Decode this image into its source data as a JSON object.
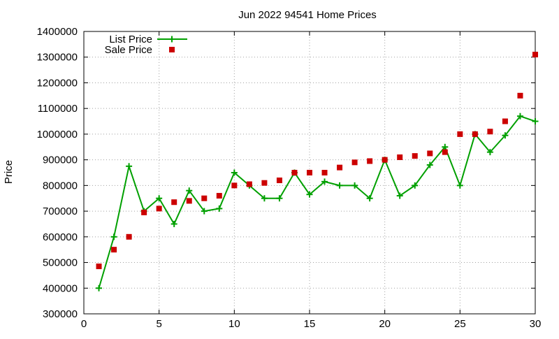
{
  "chart_data": {
    "type": "line",
    "title": "Jun 2022 94541 Home Prices",
    "xlabel": "",
    "ylabel": "Price",
    "xlim": [
      0,
      30
    ],
    "ylim": [
      300000,
      1400000
    ],
    "xticks": [
      0,
      5,
      10,
      15,
      20,
      25,
      30
    ],
    "yticks": [
      300000,
      400000,
      500000,
      600000,
      700000,
      800000,
      900000,
      1000000,
      1100000,
      1200000,
      1300000,
      1400000
    ],
    "grid": true,
    "legend_position": "top-left",
    "series": [
      {
        "name": "List Price",
        "style": "line+points",
        "marker": "plus",
        "color": "#00a000",
        "x": [
          1,
          2,
          3,
          4,
          5,
          6,
          7,
          8,
          9,
          10,
          11,
          12,
          13,
          14,
          15,
          16,
          17,
          18,
          19,
          20,
          21,
          22,
          23,
          24,
          25,
          26,
          27,
          28,
          29,
          30
        ],
        "y": [
          400000,
          600000,
          875000,
          700000,
          750000,
          650000,
          780000,
          700000,
          710000,
          850000,
          800000,
          750000,
          750000,
          850000,
          765000,
          815000,
          800000,
          800000,
          750000,
          900000,
          760000,
          800000,
          880000,
          950000,
          800000,
          1000000,
          930000,
          995000,
          1070000,
          1050000
        ]
      },
      {
        "name": "Sale Price",
        "style": "points",
        "marker": "square",
        "color": "#cc0000",
        "x": [
          1,
          2,
          3,
          4,
          5,
          6,
          7,
          8,
          9,
          10,
          11,
          12,
          13,
          14,
          15,
          16,
          17,
          18,
          19,
          20,
          21,
          22,
          23,
          24,
          25,
          26,
          27,
          28,
          29,
          30
        ],
        "y": [
          485000,
          550000,
          600000,
          695000,
          710000,
          735000,
          740000,
          750000,
          760000,
          800000,
          805000,
          810000,
          820000,
          850000,
          850000,
          850000,
          870000,
          890000,
          895000,
          900000,
          910000,
          915000,
          925000,
          930000,
          1000000,
          1000000,
          1010000,
          1050000,
          1150000,
          1310000
        ]
      }
    ]
  }
}
